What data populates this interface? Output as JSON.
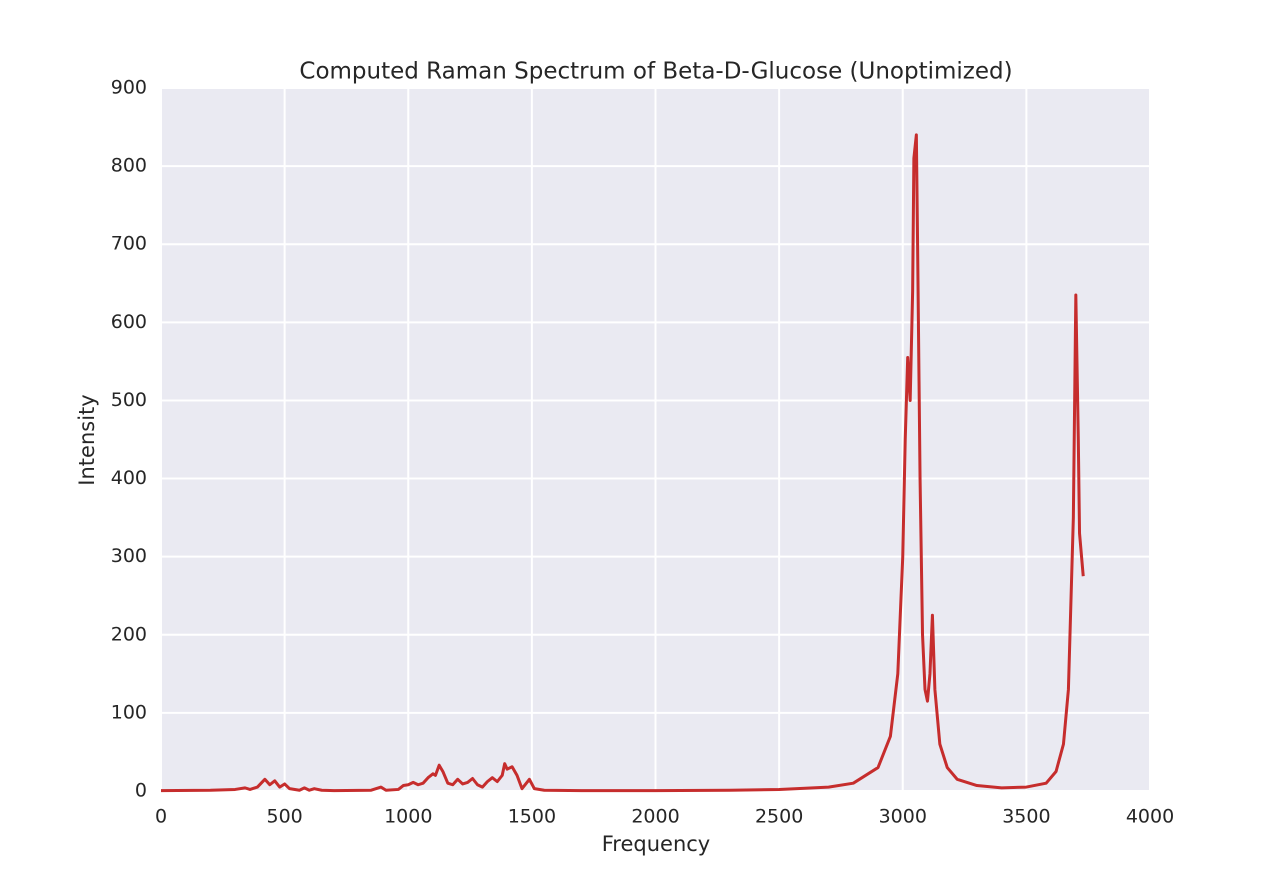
{
  "chart_data": {
    "type": "line",
    "title": "Computed Raman Spectrum of Beta-D-Glucose (Unoptimized)",
    "x_label": "Frequency",
    "y_label": "Intensity",
    "color": "#c62d2d",
    "grid": true,
    "xlim": [
      0,
      4000
    ],
    "ylim": [
      0,
      900
    ],
    "xticks": [
      0,
      500,
      1000,
      1500,
      2000,
      2500,
      3000,
      3500,
      4000
    ],
    "yticks": [
      0,
      100,
      200,
      300,
      400,
      500,
      600,
      700,
      800,
      900
    ],
    "x": [
      0,
      200,
      300,
      340,
      360,
      390,
      420,
      440,
      460,
      480,
      500,
      520,
      560,
      580,
      600,
      620,
      650,
      700,
      850,
      890,
      910,
      960,
      980,
      1000,
      1020,
      1040,
      1060,
      1080,
      1100,
      1110,
      1125,
      1140,
      1160,
      1180,
      1200,
      1220,
      1240,
      1260,
      1280,
      1300,
      1320,
      1340,
      1360,
      1380,
      1390,
      1400,
      1420,
      1440,
      1460,
      1490,
      1510,
      1550,
      1700,
      2000,
      2300,
      2500,
      2700,
      2800,
      2900,
      2950,
      2980,
      3000,
      3010,
      3020,
      3030,
      3040,
      3045,
      3055,
      3060,
      3070,
      3080,
      3090,
      3100,
      3110,
      3120,
      3130,
      3150,
      3180,
      3220,
      3300,
      3400,
      3500,
      3580,
      3620,
      3650,
      3670,
      3690,
      3700,
      3710,
      3715,
      3730
    ],
    "values": [
      0.5,
      1,
      2,
      4,
      2,
      5,
      15,
      8,
      13,
      5,
      9,
      3,
      1,
      4,
      1,
      3,
      1,
      0.5,
      1,
      5,
      1,
      2,
      7,
      8,
      11,
      8,
      10,
      17,
      22,
      20,
      33,
      25,
      10,
      8,
      15,
      9,
      11,
      16,
      8,
      5,
      12,
      17,
      12,
      20,
      35,
      28,
      31,
      20,
      3,
      15,
      3,
      1,
      0.5,
      0.5,
      1,
      2,
      5,
      10,
      30,
      70,
      150,
      300,
      450,
      555,
      500,
      640,
      810,
      840,
      700,
      400,
      200,
      130,
      115,
      150,
      225,
      130,
      60,
      30,
      15,
      7,
      4,
      5,
      10,
      25,
      60,
      130,
      350,
      635,
      450,
      330,
      275
    ]
  }
}
